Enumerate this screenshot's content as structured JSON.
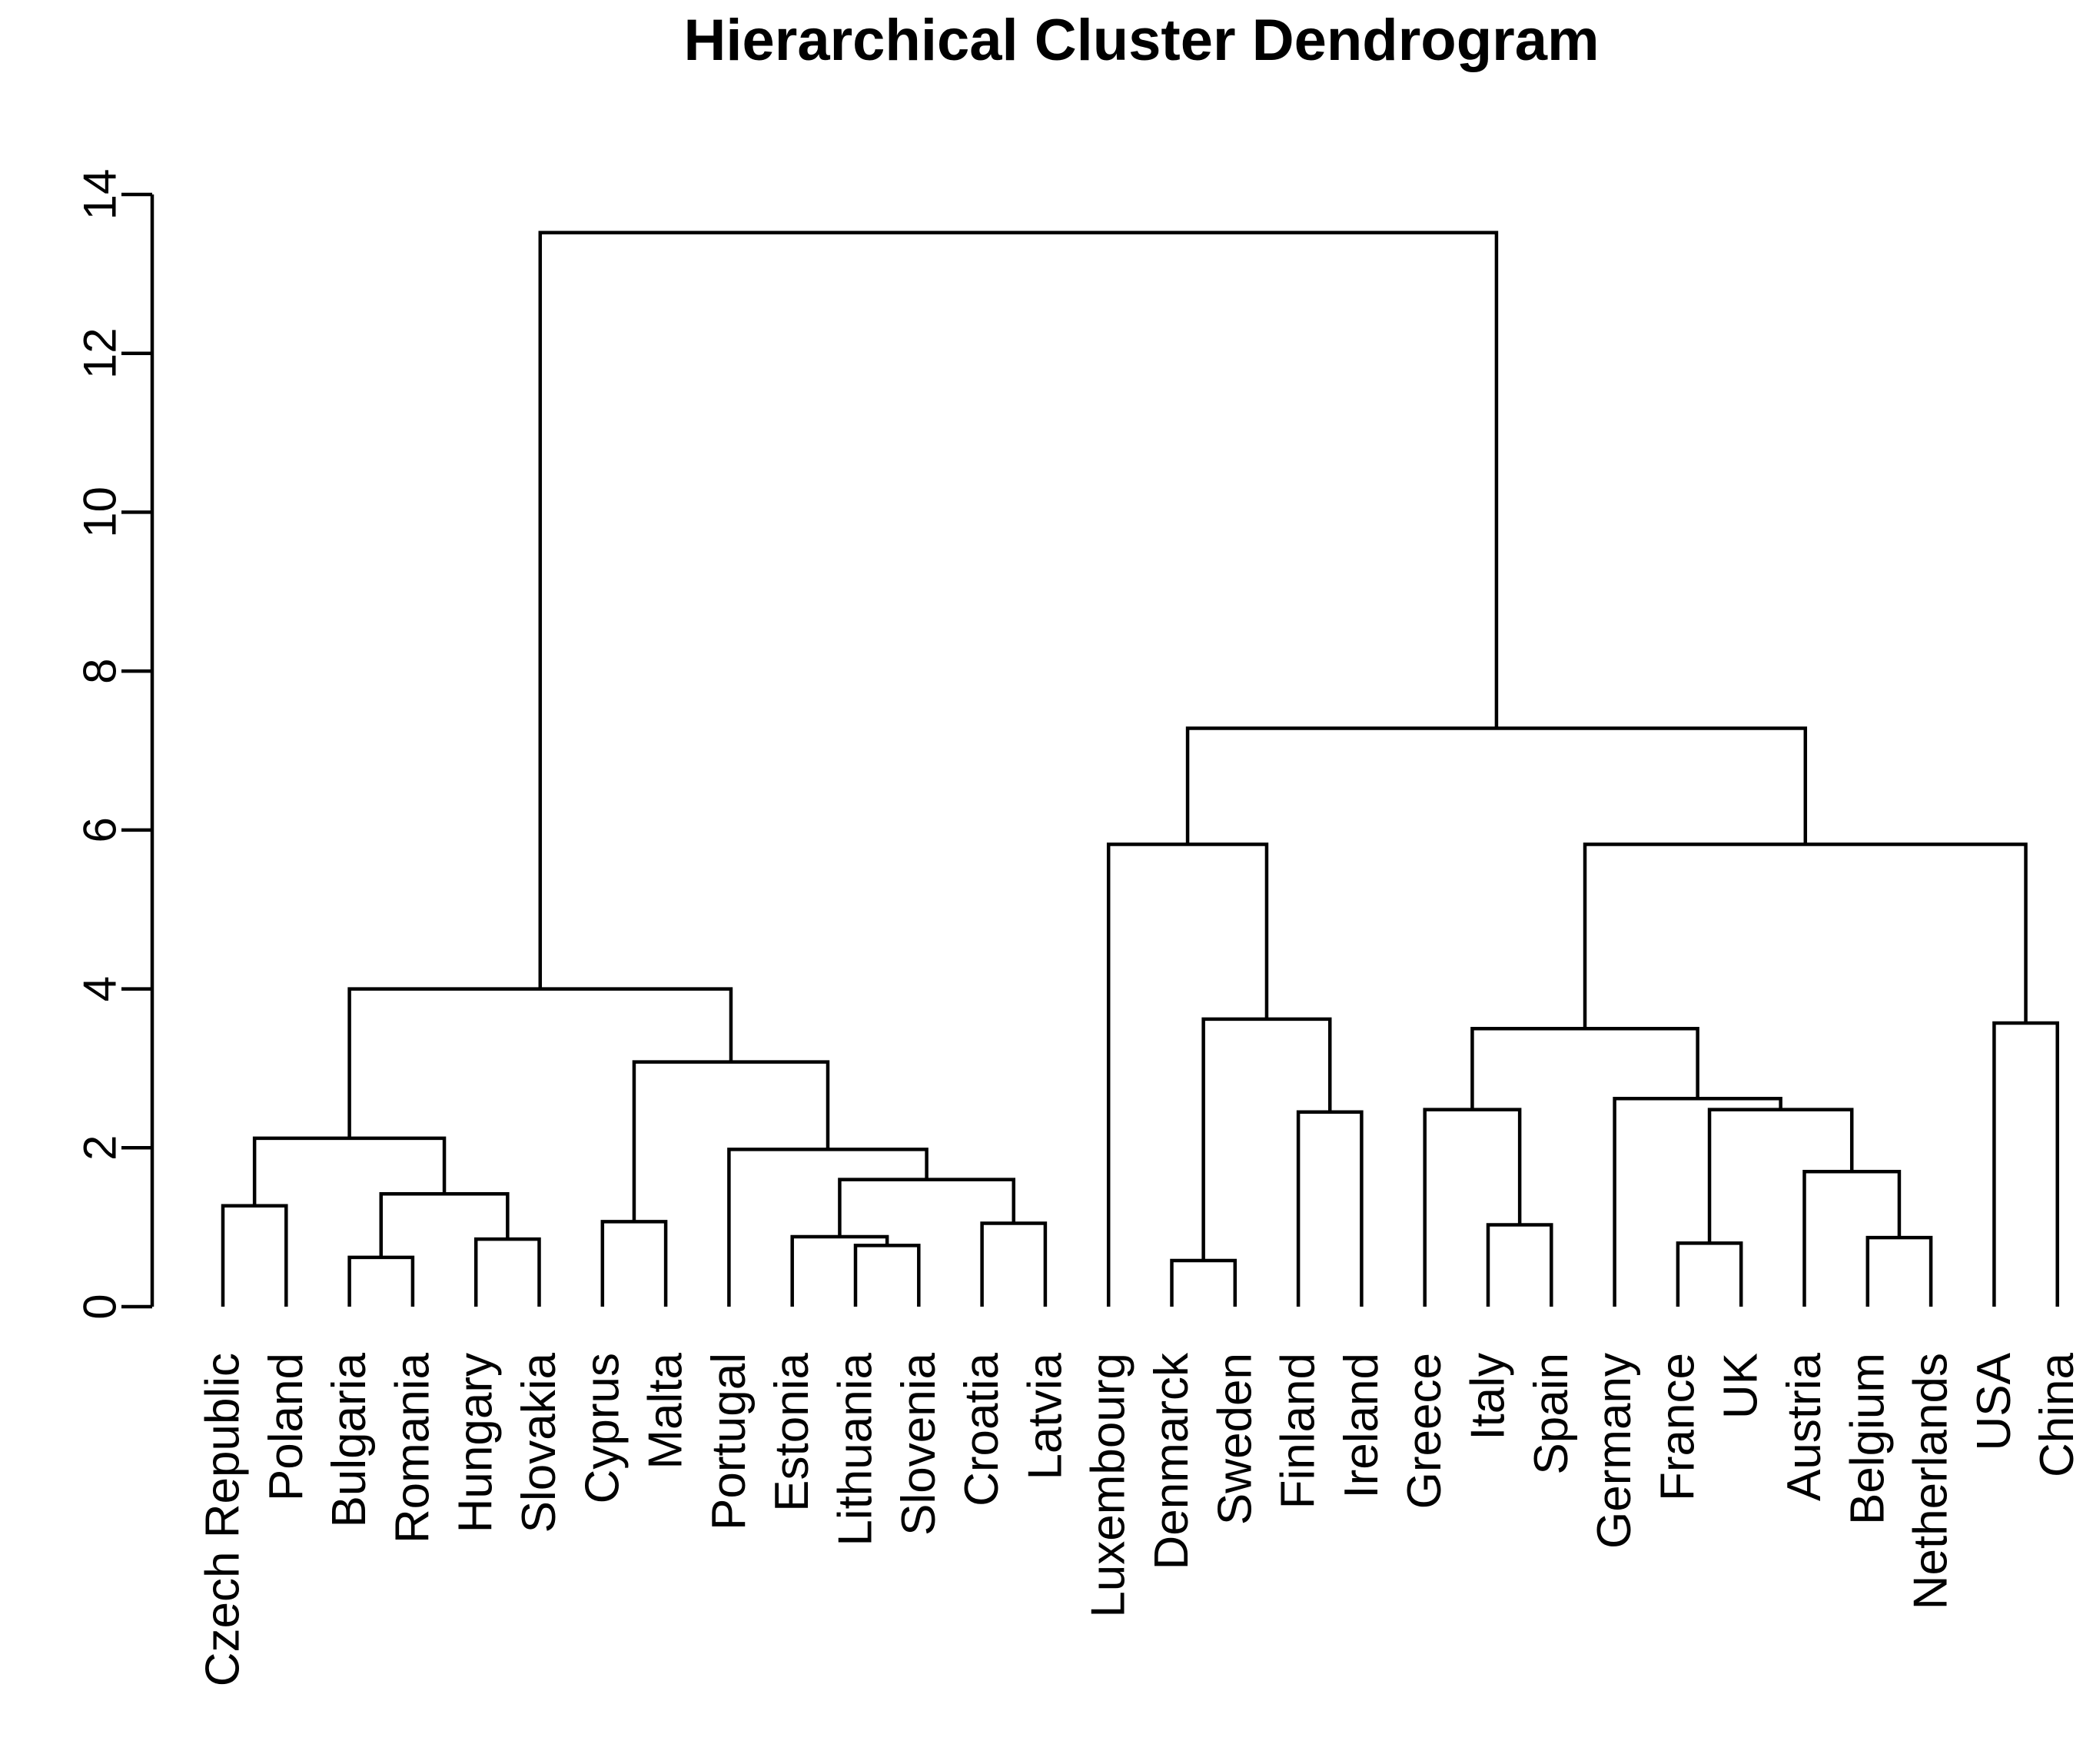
{
  "chart_data": {
    "type": "dendrogram",
    "title": "Hierarchical Cluster Dendrogram",
    "xlabel": "",
    "ylabel": "",
    "ylim": [
      0,
      14
    ],
    "yticks": [
      0,
      2,
      4,
      6,
      8,
      10,
      12,
      14
    ],
    "leaves": [
      "Czech Republic",
      "Poland",
      "Bulgaria",
      "Romania",
      "Hungary",
      "Slovakia",
      "Cyprus",
      "Malta",
      "Portugal",
      "Estonia",
      "Lithuania",
      "Slovenia",
      "Croatia",
      "Latvia",
      "Luxembourg",
      "Denmarck",
      "Sweden",
      "Finland",
      "Ireland",
      "Greece",
      "Italy",
      "Spain",
      "Germany",
      "France",
      "UK",
      "Austria",
      "Belgium",
      "Netherlands",
      "USA",
      "China"
    ],
    "merges": [
      {
        "id": "n1",
        "left": "Czech Republic",
        "right": "Poland",
        "height": 1.27
      },
      {
        "id": "n2",
        "left": "Bulgaria",
        "right": "Romania",
        "height": 0.62
      },
      {
        "id": "n3",
        "left": "Hungary",
        "right": "Slovakia",
        "height": 0.85
      },
      {
        "id": "n4",
        "left": "n2",
        "right": "n3",
        "height": 1.42
      },
      {
        "id": "n5",
        "left": "n1",
        "right": "n4",
        "height": 2.12
      },
      {
        "id": "n6",
        "left": "Cyprus",
        "right": "Malta",
        "height": 1.07
      },
      {
        "id": "n7",
        "left": "Lithuania",
        "right": "Slovenia",
        "height": 0.77
      },
      {
        "id": "n8",
        "left": "Estonia",
        "right": "n7",
        "height": 0.88
      },
      {
        "id": "n9",
        "left": "Croatia",
        "right": "Latvia",
        "height": 1.05
      },
      {
        "id": "n10",
        "left": "n8",
        "right": "n9",
        "height": 1.6
      },
      {
        "id": "n11",
        "left": "Portugal",
        "right": "n10",
        "height": 1.98
      },
      {
        "id": "n12",
        "left": "n6",
        "right": "n11",
        "height": 3.08
      },
      {
        "id": "n13",
        "left": "n5",
        "right": "n12",
        "height": 4.0
      },
      {
        "id": "n14",
        "left": "Denmarck",
        "right": "Sweden",
        "height": 0.58
      },
      {
        "id": "n15",
        "left": "Finland",
        "right": "Ireland",
        "height": 2.45
      },
      {
        "id": "n16",
        "left": "n14",
        "right": "n15",
        "height": 3.62
      },
      {
        "id": "n17",
        "left": "Luxembourg",
        "right": "n16",
        "height": 5.82
      },
      {
        "id": "n18",
        "left": "Italy",
        "right": "Spain",
        "height": 1.03
      },
      {
        "id": "n19",
        "left": "Greece",
        "right": "n18",
        "height": 2.48
      },
      {
        "id": "n20",
        "left": "France",
        "right": "UK",
        "height": 0.8
      },
      {
        "id": "n21",
        "left": "Belgium",
        "right": "Netherlands",
        "height": 0.87
      },
      {
        "id": "n22",
        "left": "Austria",
        "right": "n21",
        "height": 1.7
      },
      {
        "id": "n23",
        "left": "n20",
        "right": "n22",
        "height": 2.48
      },
      {
        "id": "n24",
        "left": "Germany",
        "right": "n23",
        "height": 2.62
      },
      {
        "id": "n25",
        "left": "n19",
        "right": "n24",
        "height": 3.5
      },
      {
        "id": "n26",
        "left": "USA",
        "right": "China",
        "height": 3.57
      },
      {
        "id": "n27",
        "left": "n25",
        "right": "n26",
        "height": 5.82
      },
      {
        "id": "n28",
        "left": "n17",
        "right": "n27",
        "height": 7.28
      },
      {
        "id": "n29",
        "left": "n13",
        "right": "n28",
        "height": 13.52
      }
    ]
  }
}
